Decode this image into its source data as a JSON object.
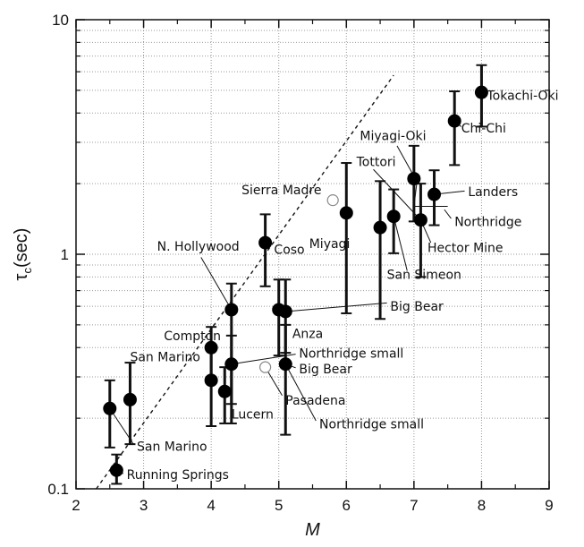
{
  "chart_data": {
    "type": "scatter",
    "xlabel": "M",
    "ylabel": "τ",
    "ylabel_sub": "c",
    "ylabel_unit": "(sec)",
    "xlim": [
      2,
      9
    ],
    "ylim": [
      0.1,
      10
    ],
    "yscale": "log",
    "x_ticks": [
      "2",
      "3",
      "4",
      "5",
      "6",
      "7",
      "8",
      "9"
    ],
    "y_ticks": [
      {
        "value": 0.1,
        "label": "0.1"
      },
      {
        "value": 1,
        "label": "1"
      },
      {
        "value": 10,
        "label": "10"
      }
    ],
    "grid": true,
    "points": [
      {
        "x": 2.6,
        "y": 0.12,
        "lo": 0.105,
        "hi": 0.14,
        "filled": true
      },
      {
        "x": 2.5,
        "y": 0.22,
        "lo": 0.15,
        "hi": 0.29,
        "filled": true
      },
      {
        "x": 2.8,
        "y": 0.24,
        "lo": 0.155,
        "hi": 0.345,
        "filled": true
      },
      {
        "x": 4.0,
        "y": 0.4,
        "lo": 0.3,
        "hi": 0.49,
        "filled": true
      },
      {
        "x": 4.0,
        "y": 0.29,
        "lo": 0.185,
        "hi": 0.39,
        "filled": true
      },
      {
        "x": 4.2,
        "y": 0.26,
        "lo": 0.19,
        "hi": 0.33,
        "filled": true
      },
      {
        "x": 4.3,
        "y": 0.34,
        "lo": 0.23,
        "hi": 0.45,
        "filled": true
      },
      {
        "x": 4.3,
        "y": 0.58,
        "lo": 0.19,
        "hi": 0.75,
        "filled": true
      },
      {
        "x": 4.8,
        "y": 1.12,
        "lo": 0.73,
        "hi": 1.48,
        "filled": true
      },
      {
        "x": 5.0,
        "y": 0.58,
        "lo": 0.37,
        "hi": 0.78,
        "filled": true
      },
      {
        "x": 5.1,
        "y": 0.57,
        "lo": 0.38,
        "hi": 0.78,
        "filled": true
      },
      {
        "x": 5.1,
        "y": 0.34,
        "lo": 0.17,
        "hi": 0.5,
        "filled": true
      },
      {
        "x": 4.8,
        "y": 0.33,
        "filled": false
      },
      {
        "x": 5.8,
        "y": 1.7,
        "filled": false
      },
      {
        "x": 6.0,
        "y": 1.5,
        "lo": 0.56,
        "hi": 2.45,
        "filled": true
      },
      {
        "x": 6.5,
        "y": 1.3,
        "lo": 0.53,
        "hi": 2.05,
        "filled": true
      },
      {
        "x": 6.7,
        "y": 1.45,
        "lo": 1.01,
        "hi": 1.89,
        "filled": true
      },
      {
        "x": 7.0,
        "y": 2.1,
        "lo": 1.38,
        "hi": 2.9,
        "filled": true
      },
      {
        "x": 7.1,
        "y": 1.4,
        "lo": 0.8,
        "hi": 2.0,
        "filled": true
      },
      {
        "x": 7.3,
        "y": 1.8,
        "lo": 1.33,
        "hi": 2.28,
        "filled": true
      },
      {
        "x": 7.6,
        "y": 3.7,
        "lo": 2.4,
        "hi": 4.95,
        "filled": true
      },
      {
        "x": 8.0,
        "y": 4.9,
        "lo": 3.5,
        "hi": 6.4,
        "filled": true
      }
    ],
    "fit_line": {
      "x": [
        2.3,
        6.7
      ],
      "y": [
        0.1,
        5.8
      ]
    },
    "annotations": [
      {
        "text": "Tokachi-Oki",
        "at": [
          8.08,
          4.75
        ],
        "anchor": "start"
      },
      {
        "text": "Chi-Chi",
        "at": [
          7.7,
          3.45
        ],
        "anchor": "start"
      },
      {
        "text": "Miyagi-Oki",
        "at": [
          6.2,
          3.2
        ],
        "anchor": "start"
      },
      {
        "text": "Tottori",
        "at": [
          6.15,
          2.48
        ],
        "anchor": "start"
      },
      {
        "text": "Sierra Madre",
        "at": [
          4.45,
          1.88
        ],
        "anchor": "start"
      },
      {
        "text": "Landers",
        "at": [
          7.8,
          1.85
        ],
        "anchor": "start"
      },
      {
        "text": "Northridge",
        "at": [
          7.6,
          1.38
        ],
        "anchor": "start"
      },
      {
        "text": "Miyagi",
        "at": [
          5.45,
          1.11
        ],
        "anchor": "start"
      },
      {
        "text": "Coso",
        "at": [
          4.93,
          1.05
        ],
        "anchor": "start"
      },
      {
        "text": "N. Hollywood",
        "at": [
          3.2,
          1.08
        ],
        "anchor": "start"
      },
      {
        "text": "Hector Mine",
        "at": [
          7.2,
          1.07
        ],
        "anchor": "start"
      },
      {
        "text": "San Simeon",
        "at": [
          6.6,
          0.82
        ],
        "anchor": "start"
      },
      {
        "text": "Big Bear",
        "at": [
          6.65,
          0.6
        ],
        "anchor": "start"
      },
      {
        "text": "Anza",
        "at": [
          5.2,
          0.46
        ],
        "anchor": "start"
      },
      {
        "text": "Compton",
        "at": [
          3.3,
          0.45
        ],
        "anchor": "start"
      },
      {
        "text": "San Marino",
        "at": [
          2.8,
          0.365
        ],
        "anchor": "start"
      },
      {
        "text": "Northridge small",
        "at": [
          5.3,
          0.378
        ],
        "anchor": "start"
      },
      {
        "text": "Big Bear",
        "at": [
          5.3,
          0.325
        ],
        "anchor": "start"
      },
      {
        "text": "Pasadena",
        "at": [
          5.1,
          0.239
        ],
        "anchor": "start"
      },
      {
        "text": "Lucern",
        "at": [
          4.3,
          0.208
        ],
        "anchor": "start"
      },
      {
        "text": "Northridge small",
        "at": [
          5.6,
          0.189
        ],
        "anchor": "start"
      },
      {
        "text": "San Marino",
        "at": [
          2.9,
          0.152
        ],
        "anchor": "start"
      },
      {
        "text": "Running Springs",
        "at": [
          2.75,
          0.115
        ],
        "anchor": "start"
      }
    ],
    "leader_lines": [
      {
        "from": [
          8.0,
          4.9
        ],
        "to": [
          8.05,
          4.75
        ]
      },
      {
        "from": [
          7.6,
          3.7
        ],
        "to": [
          7.7,
          3.5
        ]
      },
      {
        "from": [
          6.75,
          2.9
        ],
        "to": [
          7.0,
          2.15
        ]
      },
      {
        "from": [
          6.4,
          2.3
        ],
        "to": [
          7.05,
          1.45
        ]
      },
      {
        "from": [
          7.3,
          1.8
        ],
        "to": [
          7.75,
          1.86
        ]
      },
      {
        "from": [
          7.45,
          1.55
        ],
        "to": [
          7.55,
          1.42
        ]
      },
      {
        "from": [
          7.05,
          2.1
        ],
        "to": [
          7.0,
          1.6
        ]
      },
      {
        "from": [
          7.0,
          1.6
        ],
        "to": [
          7.5,
          1.6
        ]
      },
      {
        "from": [
          7.1,
          1.4
        ],
        "to": [
          7.25,
          1.12
        ]
      },
      {
        "from": [
          6.7,
          1.45
        ],
        "to": [
          6.9,
          0.85
        ]
      },
      {
        "from": [
          5.1,
          0.57
        ],
        "to": [
          6.6,
          0.62
        ]
      },
      {
        "from": [
          3.85,
          0.97
        ],
        "to": [
          4.3,
          0.58
        ]
      },
      {
        "from": [
          4.3,
          0.34
        ],
        "to": [
          5.25,
          0.375
        ]
      },
      {
        "from": [
          5.1,
          0.34
        ],
        "to": [
          5.25,
          0.328
        ]
      },
      {
        "from": [
          4.8,
          0.33
        ],
        "to": [
          5.05,
          0.25
        ]
      },
      {
        "from": [
          5.1,
          0.34
        ],
        "to": [
          5.55,
          0.195
        ]
      },
      {
        "from": [
          2.5,
          0.22
        ],
        "to": [
          2.85,
          0.155
        ]
      },
      {
        "from": [
          2.6,
          0.12
        ],
        "to": [
          2.7,
          0.116
        ]
      }
    ]
  }
}
